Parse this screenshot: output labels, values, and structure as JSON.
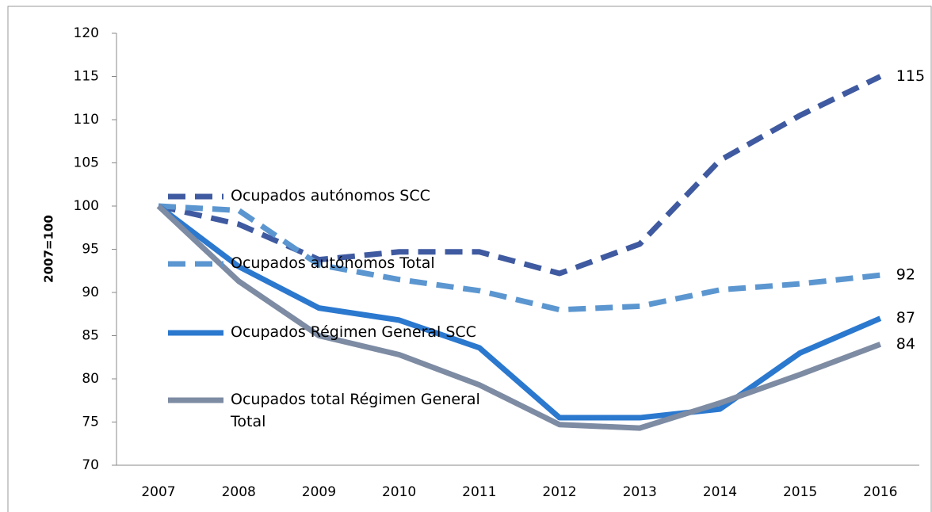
{
  "chart_data": {
    "type": "line",
    "y_label": "2007=100",
    "categories": [
      "2007",
      "2008",
      "2009",
      "2010",
      "2011",
      "2012",
      "2013",
      "2014",
      "2015",
      "2016"
    ],
    "series": [
      {
        "name": "Ocupados autónomos SCC",
        "color": "#3f5aa0",
        "dashed": true,
        "values": [
          100,
          97.9,
          93.8,
          94.7,
          94.7,
          92.2,
          95.6,
          105.3,
          110.5,
          115
        ]
      },
      {
        "name": "Ocupados autónomos Total",
        "color": "#5b96d0",
        "dashed": true,
        "values": [
          100,
          99.5,
          93.2,
          91.5,
          90.2,
          88,
          88.4,
          90.3,
          91,
          92
        ]
      },
      {
        "name": "Ocupados Régimen General SCC",
        "color": "#2b78cf",
        "dashed": false,
        "values": [
          100,
          93,
          88.2,
          86.8,
          83.6,
          75.5,
          75.5,
          76.5,
          83,
          87
        ]
      },
      {
        "name": "Ocupados total Régimen General Total",
        "color": "#7d8ba3",
        "dashed": false,
        "values": [
          100,
          91.3,
          85,
          82.8,
          79.3,
          74.7,
          74.3,
          77.2,
          80.5,
          84
        ]
      }
    ],
    "ylim": [
      70,
      120
    ],
    "yticks": [
      70,
      75,
      80,
      85,
      90,
      95,
      100,
      105,
      110,
      115,
      120
    ],
    "end_labels": true,
    "legend": "left"
  }
}
